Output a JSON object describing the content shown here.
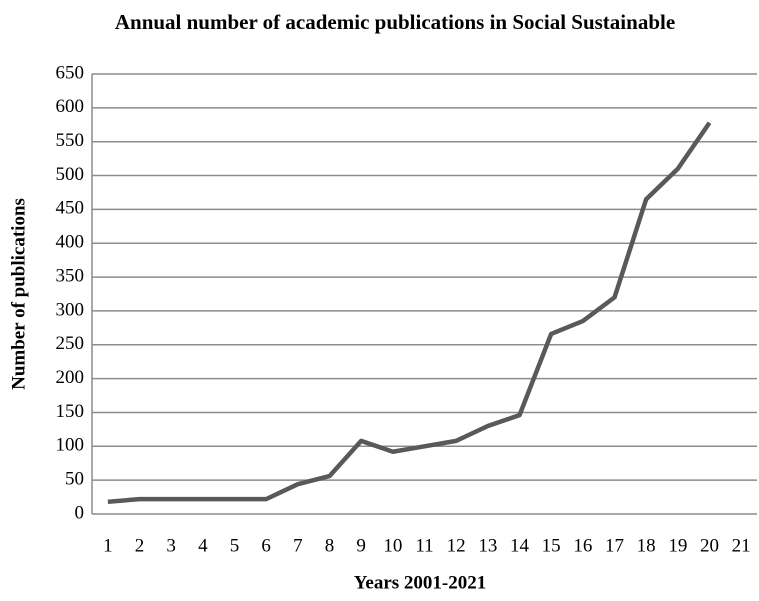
{
  "chart_data": {
    "type": "line",
    "title": "Annual number of academic publications in Social Sustainable",
    "x_label": "Years 2001-2021",
    "y_label": "Number of publications",
    "categories": [
      "1",
      "2",
      "3",
      "4",
      "5",
      "6",
      "7",
      "8",
      "9",
      "10",
      "11",
      "12",
      "13",
      "14",
      "15",
      "16",
      "17",
      "18",
      "19",
      "20",
      "21"
    ],
    "series": [
      {
        "name": "Publications",
        "color": "#595959",
        "values": [
          18,
          22,
          22,
          22,
          22,
          22,
          44,
          56,
          108,
          92,
          100,
          108,
          130,
          146,
          266,
          285,
          320,
          465,
          510,
          578,
          null
        ]
      }
    ],
    "ylim": [
      0,
      650
    ],
    "yticks": [
      0,
      50,
      100,
      150,
      200,
      250,
      300,
      350,
      400,
      450,
      500,
      550,
      600,
      650
    ],
    "grid": true
  }
}
